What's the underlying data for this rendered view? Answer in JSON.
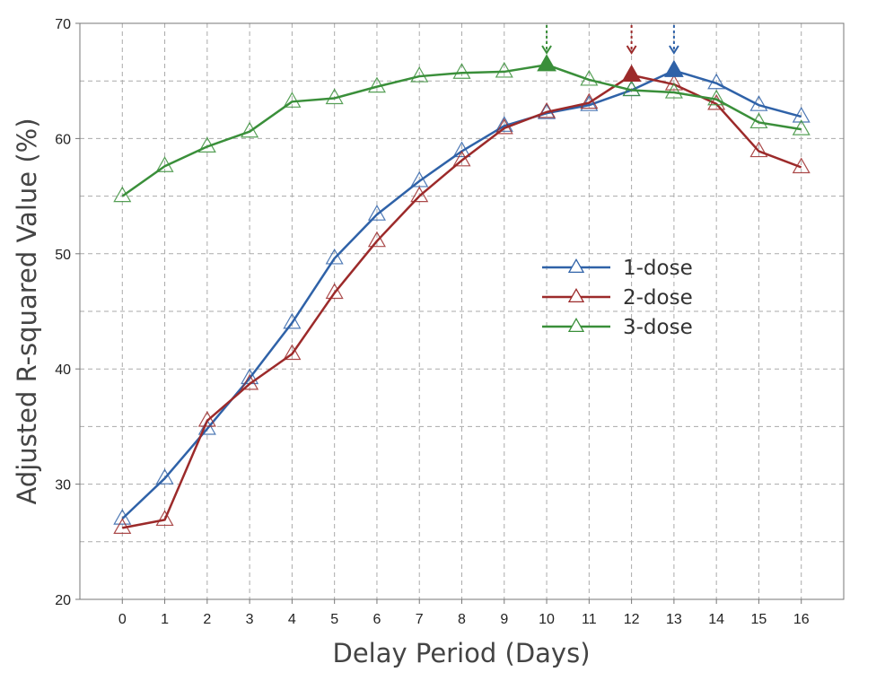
{
  "chart_data": {
    "type": "line",
    "xlabel": "Delay Period (Days)",
    "ylabel": "Adjusted R-squared Value (%)",
    "x": [
      0,
      1,
      2,
      3,
      4,
      5,
      6,
      7,
      8,
      9,
      10,
      11,
      12,
      13,
      14,
      15,
      16
    ],
    "xlim": [
      -1,
      17
    ],
    "ylim": [
      20,
      70
    ],
    "yticks": [
      20,
      30,
      40,
      50,
      60,
      70
    ],
    "ygrid_minor": [
      25,
      35,
      45,
      55,
      65
    ],
    "grid": true,
    "legend_position": "center-right",
    "series": [
      {
        "name": "1-dose",
        "color": "#2f62a8",
        "values": [
          27.0,
          30.5,
          34.8,
          39.2,
          44.0,
          49.6,
          53.4,
          56.3,
          58.9,
          61.1,
          62.2,
          62.9,
          64.2,
          65.9,
          64.8,
          62.9,
          61.9
        ],
        "peak_x": 13
      },
      {
        "name": "2-dose",
        "color": "#9c2a2a",
        "values": [
          26.2,
          26.9,
          35.5,
          38.7,
          41.3,
          46.6,
          51.1,
          55.0,
          58.1,
          60.9,
          62.3,
          63.1,
          65.5,
          64.7,
          63.0,
          58.9,
          57.5
        ],
        "peak_x": 12
      },
      {
        "name": "3-dose",
        "color": "#3a8f3a",
        "values": [
          55.0,
          57.6,
          59.3,
          60.6,
          63.2,
          63.5,
          64.5,
          65.4,
          65.7,
          65.8,
          66.4,
          65.1,
          64.2,
          64.0,
          63.4,
          61.4,
          60.8
        ],
        "peak_x": 10
      }
    ]
  }
}
